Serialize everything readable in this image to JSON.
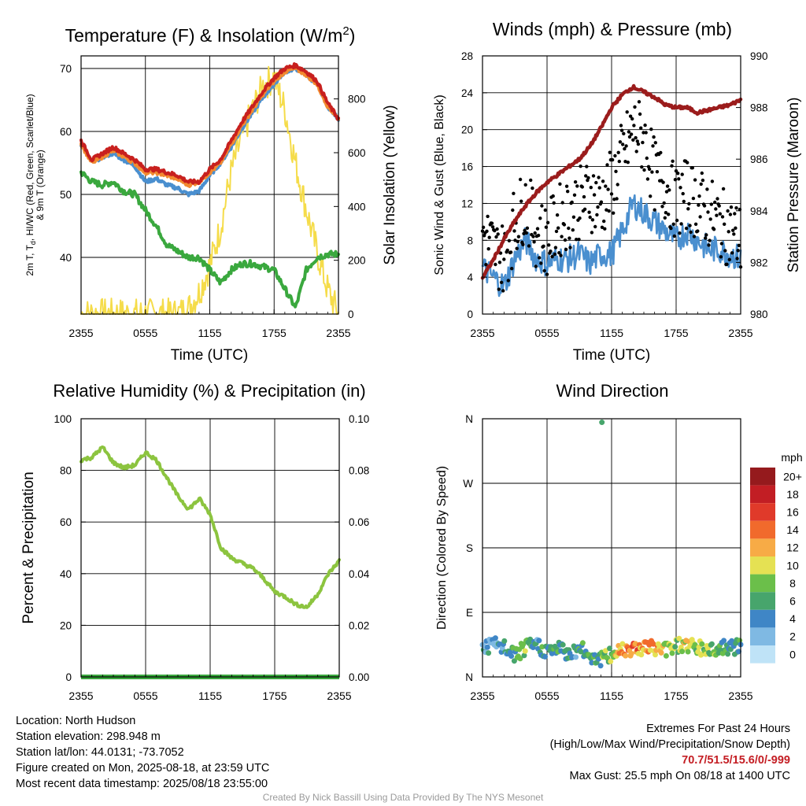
{
  "charts": [
    {
      "title_main": "Temperature (F) & Insolation (W/m",
      "title_sup": "2",
      "title_end": ")",
      "xlabel": "Time (UTC)",
      "ylabel_main": "2m T, T",
      "ylabel_sub": "d",
      "ylabel_rest": ", HI/WC (Red, Green, Scarlet/Blue)",
      "ylabel_line2": "& 9m T (Orange)",
      "ylabel_right": "Solar Insolation (Yellow)"
    },
    {
      "title": "Winds (mph) & Pressure (mb)",
      "xlabel": "Time (UTC)",
      "ylabel_left": "Sonic Wind & Gust (Blue, Black)",
      "ylabel_right": "Station Pressure (Maroon)"
    },
    {
      "title": "Relative Humidity (%) & Precipitation (in)",
      "ylabel_left": "Percent & Precipitation"
    },
    {
      "title": "Wind Direction",
      "ylabel_left": "Direction (Colored By Speed)",
      "colorbar_title": "mph"
    }
  ],
  "chart_data": [
    {
      "type": "line",
      "x_ticks": [
        "2355",
        "0555",
        "1155",
        "1755",
        "2355"
      ],
      "y_ticks_left": [
        "40",
        "50",
        "60",
        "70"
      ],
      "y_ticks_right": [
        "0",
        "200",
        "400",
        "600",
        "800"
      ],
      "ylim_left": [
        31,
        72
      ],
      "ylim_right": [
        0,
        960
      ],
      "hours": [
        0,
        1,
        2,
        3,
        4,
        5,
        6,
        7,
        8,
        9,
        10,
        11,
        12,
        13,
        14,
        15,
        16,
        17,
        18,
        19,
        20,
        21,
        22,
        23,
        24
      ],
      "series": [
        {
          "key": "temp",
          "color": "#c8201e",
          "axis": "left",
          "values": [
            58.5,
            55.5,
            56.5,
            57.5,
            56.5,
            55.5,
            54,
            54,
            53.5,
            53,
            52,
            52,
            54,
            55.5,
            58.5,
            61.5,
            64,
            66.5,
            68.5,
            70,
            70.5,
            69.5,
            68,
            64.5,
            62
          ]
        },
        {
          "key": "heat_index",
          "color": "#4a8fcf",
          "axis": "left",
          "values": [
            58,
            55,
            56,
            56.5,
            55.5,
            54.5,
            52,
            52.5,
            51.5,
            51,
            50,
            50.5,
            53,
            55,
            57.5,
            60.5,
            63,
            65.5,
            67.5,
            69.5,
            70,
            69,
            67.5,
            64,
            62
          ]
        },
        {
          "key": "temp_9m",
          "color": "#f28a30",
          "axis": "left",
          "values": [
            58,
            55,
            56,
            57,
            56,
            55,
            53.5,
            53.5,
            53,
            52.5,
            51.5,
            52,
            53.5,
            55,
            58,
            61,
            63.5,
            66,
            68,
            69.5,
            70,
            69,
            67.5,
            64,
            62
          ]
        },
        {
          "key": "dewpoint",
          "color": "#3aa83e",
          "axis": "left",
          "values": [
            53.5,
            52,
            51.5,
            52,
            50.5,
            50,
            47.5,
            45,
            42,
            41,
            40,
            40,
            38,
            36,
            38,
            39,
            39,
            38.5,
            38,
            35,
            32,
            38,
            40,
            40.5,
            40.5
          ]
        },
        {
          "key": "solar",
          "color": "#f5dc4a",
          "axis": "right",
          "values": [
            0,
            0,
            0,
            0,
            0,
            0,
            0,
            0,
            0,
            0,
            20,
            80,
            180,
            320,
            530,
            660,
            760,
            850,
            880,
            760,
            560,
            390,
            230,
            90,
            0
          ]
        }
      ]
    },
    {
      "type": "line",
      "x_ticks": [
        "2355",
        "0555",
        "1155",
        "1755",
        "2355"
      ],
      "y_ticks_left": [
        "0",
        "4",
        "8",
        "12",
        "16",
        "20",
        "24",
        "28"
      ],
      "y_ticks_right": [
        "980",
        "982",
        "984",
        "986",
        "988",
        "990"
      ],
      "ylim_left": [
        0,
        28
      ],
      "ylim_right": [
        980,
        990
      ],
      "hours": [
        0,
        1,
        2,
        3,
        4,
        5,
        6,
        7,
        8,
        9,
        10,
        11,
        12,
        13,
        14,
        15,
        16,
        17,
        18,
        19,
        20,
        21,
        22,
        23,
        24
      ],
      "series": [
        {
          "key": "wind",
          "color": "#4a8fcf",
          "axis": "left",
          "values": [
            5,
            4,
            3,
            6,
            8,
            6,
            5.5,
            6,
            6,
            6.5,
            5.5,
            6.5,
            6.5,
            9,
            12,
            11,
            10,
            9,
            8,
            9,
            8,
            7,
            7,
            6.5,
            6
          ]
        },
        {
          "key": "gust",
          "color": "#000000",
          "axis": "left",
          "markers": true,
          "values": [
            9,
            7,
            6,
            10,
            12,
            9,
            8,
            10,
            11,
            12,
            13,
            12,
            14,
            17,
            20,
            19,
            15,
            14,
            12,
            13,
            12,
            11,
            10,
            9,
            8
          ]
        },
        {
          "key": "pressure",
          "color": "#9b1c1c",
          "axis": "right",
          "values": [
            981.4,
            982.1,
            982.9,
            983.6,
            984.2,
            984.7,
            985.1,
            985.4,
            985.7,
            986.0,
            986.5,
            987.2,
            988.0,
            988.5,
            988.8,
            988.6,
            988.4,
            988.1,
            988.0,
            988.0,
            987.8,
            987.9,
            988.0,
            988.1,
            988.3
          ]
        }
      ]
    },
    {
      "type": "line",
      "x_ticks": [
        "2355",
        "0555",
        "1155",
        "1755",
        "2355"
      ],
      "y_ticks_left": [
        "0",
        "20",
        "40",
        "60",
        "80",
        "100"
      ],
      "y_ticks_right": [
        "0.00",
        "0.02",
        "0.04",
        "0.06",
        "0.08",
        "0.10"
      ],
      "ylim_left": [
        0,
        100
      ],
      "ylim_right": [
        0,
        0.1
      ],
      "hours": [
        0,
        1,
        2,
        3,
        4,
        5,
        6,
        7,
        8,
        9,
        10,
        11,
        12,
        13,
        14,
        15,
        16,
        17,
        18,
        19,
        20,
        21,
        22,
        23,
        24
      ],
      "series": [
        {
          "key": "rh",
          "color": "#8cc43f",
          "axis": "left",
          "values": [
            84,
            85,
            89,
            83,
            81,
            82,
            87,
            84,
            77,
            70,
            65,
            69,
            63,
            50,
            46,
            44,
            42,
            38,
            33,
            31,
            28,
            27,
            32,
            40,
            45
          ]
        },
        {
          "key": "precip",
          "color": "#3aa83e",
          "axis": "right",
          "values": [
            0,
            0,
            0,
            0,
            0,
            0,
            0,
            0,
            0,
            0,
            0,
            0,
            0,
            0,
            0,
            0,
            0,
            0,
            0,
            0,
            0,
            0,
            0,
            0,
            0
          ]
        }
      ]
    },
    {
      "type": "scatter",
      "x_ticks": [
        "2355",
        "0555",
        "1155",
        "1755",
        "2355"
      ],
      "y_ticks_left": [
        "N",
        "E",
        "S",
        "W",
        "N"
      ],
      "ylim_left": [
        0,
        360
      ],
      "colorbar_labels": [
        "0",
        "2",
        "4",
        "6",
        "8",
        "10",
        "12",
        "14",
        "16",
        "18",
        "20+"
      ],
      "colorbar_colors": [
        "#bfe3f7",
        "#7fb9e3",
        "#3f86c6",
        "#47a56c",
        "#6bbf4a",
        "#e5e153",
        "#f7ab46",
        "#f16a2c",
        "#e03a2a",
        "#c21e24",
        "#951a1d"
      ],
      "hours": [
        0,
        1,
        2,
        3,
        4,
        5,
        6,
        7,
        8,
        9,
        10,
        11,
        12,
        13,
        14,
        15,
        16,
        17,
        18,
        19,
        20,
        21,
        22,
        23,
        24
      ],
      "direction_values": [
        40,
        45,
        40,
        30,
        40,
        45,
        35,
        40,
        32,
        40,
        30,
        25,
        30,
        40,
        40,
        42,
        40,
        38,
        45,
        45,
        40,
        38,
        40,
        40,
        42
      ],
      "speed_values": [
        4,
        3,
        4,
        6,
        7,
        5,
        6,
        5,
        6,
        5,
        6,
        7,
        9,
        12,
        14,
        12,
        11,
        10,
        9,
        10,
        8,
        8,
        7,
        6,
        6
      ],
      "outlier": {
        "hour": 11.1,
        "direction": 355,
        "speed": 6
      }
    }
  ],
  "info_left": [
    "Location: North Hudson",
    "Station elevation: 298.948 m",
    "Station lat/lon: 44.0131; -73.7052",
    "Figure created on Mon, 2025-08-18, at 23:59 UTC",
    "Most recent data timestamp: 2025/08/18 23:55:00"
  ],
  "info_right": {
    "line1": "Extremes For Past 24 Hours",
    "line2": "(High/Low/Max Wind/Precipitation/Snow Depth)",
    "extremes": "70.7/51.5/15.6/0/-999",
    "gust": "Max Gust: 25.5 mph On 08/18 at 1400 UTC"
  },
  "credit": "Created By Nick Bassill Using Data Provided By The NYS Mesonet"
}
